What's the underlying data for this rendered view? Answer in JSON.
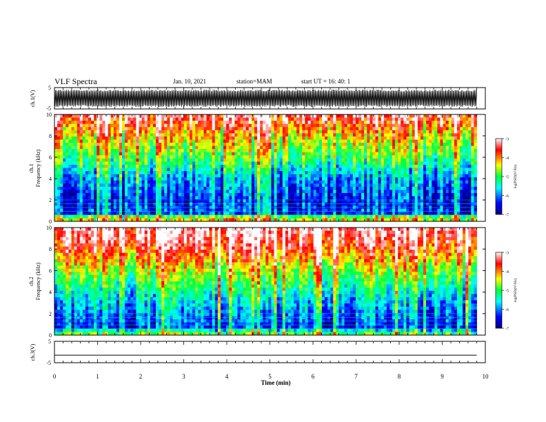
{
  "header": {
    "title": "VLF Spectra",
    "date": "Jan. 10, 2021",
    "station": "station=MAM",
    "start": "start UT =  16: 40: 1"
  },
  "chart_data": [
    {
      "type": "line",
      "panel": "ch1-waveform",
      "ylabel": "ch.1(V)",
      "yticks": [
        "5",
        "-5"
      ],
      "ylim": [
        -5,
        5
      ],
      "description_values": "dense oscillating waveform filling roughly -4 to 4 V across 0-9.8 min",
      "x_end": 9.8,
      "color": "#000000"
    },
    {
      "type": "heatmap",
      "panel": "ch1-spectrogram",
      "ylabel": "ch.1",
      "ylabel2": "Frequency (kHz)",
      "yticks": [
        "0",
        "2",
        "4",
        "6",
        "8",
        "10"
      ],
      "ylim": [
        0,
        10
      ],
      "xlim": [
        0,
        10
      ],
      "x_end": 9.8,
      "colorbar": {
        "label": "log(PSD)(V²/Hz)",
        "ticks": [
          "-3",
          "-4",
          "-5",
          "-6",
          "-7"
        ],
        "range": [
          -7,
          -3
        ]
      },
      "intensity_profile": [
        {
          "freq": 0.0,
          "level": -5.2
        },
        {
          "freq": 0.3,
          "level": -3.6
        },
        {
          "freq": 0.6,
          "level": -6.3
        },
        {
          "freq": 2.0,
          "level": -6.4
        },
        {
          "freq": 4.0,
          "level": -5.9
        },
        {
          "freq": 6.0,
          "level": -5.0
        },
        {
          "freq": 7.5,
          "level": -4.5
        },
        {
          "freq": 9.0,
          "level": -3.8
        },
        {
          "freq": 10.0,
          "level": -3.3
        }
      ]
    },
    {
      "type": "heatmap",
      "panel": "ch2-spectrogram",
      "ylabel": "ch.2",
      "ylabel2": "Frequency (kHz)",
      "yticks": [
        "0",
        "2",
        "4",
        "6",
        "8",
        "10"
      ],
      "ylim": [
        0,
        10
      ],
      "xlim": [
        0,
        10
      ],
      "x_end": 9.8,
      "colorbar": {
        "label": "log(PSD)(V²/Hz)",
        "ticks": [
          "-3",
          "-4",
          "-5",
          "-6",
          "-7"
        ],
        "range": [
          -7,
          -3
        ]
      },
      "intensity_profile": [
        {
          "freq": 0.0,
          "level": -5.0
        },
        {
          "freq": 0.3,
          "level": -4.8
        },
        {
          "freq": 0.6,
          "level": -6.3
        },
        {
          "freq": 2.0,
          "level": -6.0
        },
        {
          "freq": 4.0,
          "level": -5.4
        },
        {
          "freq": 6.0,
          "level": -4.6
        },
        {
          "freq": 7.5,
          "level": -3.9
        },
        {
          "freq": 9.0,
          "level": -3.3
        },
        {
          "freq": 10.0,
          "level": -3.1
        }
      ]
    },
    {
      "type": "line",
      "panel": "ch3-waveform",
      "ylabel": "ch.3(V)",
      "yticks": [
        "5",
        "-5"
      ],
      "ylim": [
        -5,
        5
      ],
      "xlabel": "Time (min)",
      "xticks": [
        "0",
        "1",
        "2",
        "3",
        "4",
        "5",
        "6",
        "7",
        "8",
        "9",
        "10"
      ],
      "xlim": [
        0,
        10
      ],
      "x": [
        0,
        9.8
      ],
      "values": [
        -1.5,
        -1.5
      ],
      "color": "#000000"
    }
  ]
}
